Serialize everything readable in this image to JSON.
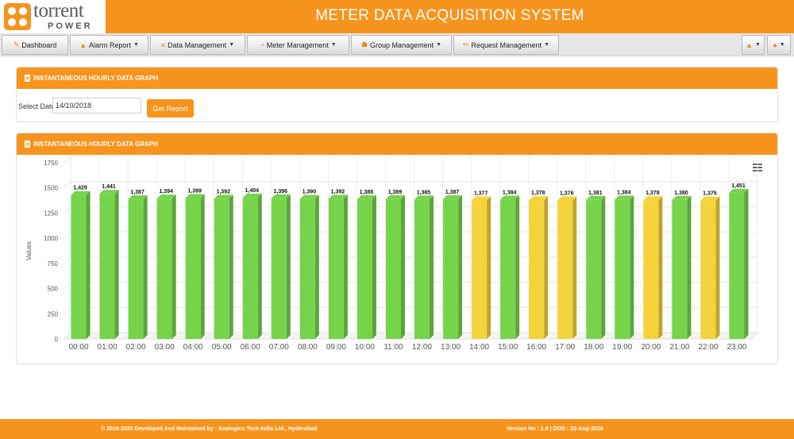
{
  "header": {
    "logo_word": "torrent",
    "logo_sub": "POWER",
    "title": "METER DATA ACQUISITION SYSTEM"
  },
  "nav": {
    "items": [
      {
        "label": "Dashboard",
        "icon": "edit-icon",
        "caret": false
      },
      {
        "label": "Alarm Report",
        "icon": "bell-icon",
        "caret": true
      },
      {
        "label": "Data Management",
        "icon": "database-icon",
        "caret": true
      },
      {
        "label": "Meter Management",
        "icon": "dashboard-gauge-icon",
        "caret": true
      },
      {
        "label": "Group Management",
        "icon": "users-icon",
        "caret": true
      },
      {
        "label": "Request Management",
        "icon": "pencil-icon",
        "caret": true
      }
    ],
    "right_icons": [
      "bell-icon",
      "user-icon"
    ]
  },
  "filter_panel": {
    "title": "INSTANTANEOUS HOURLY DATA GRAPH",
    "date_label": "Select Date",
    "date_value": "14/10/2018",
    "button_label": "Get Report"
  },
  "chart_panel": {
    "title": "INSTANTANEOUS HOURLY DATA GRAPH"
  },
  "chart_data": {
    "type": "bar",
    "ylabel": "Values",
    "xlabel": "",
    "ylim": [
      0,
      1750
    ],
    "yticks": [
      0,
      250,
      500,
      750,
      1000,
      1250,
      1500,
      1750
    ],
    "grid": true,
    "categories": [
      "00:00",
      "01:00",
      "02:00",
      "03:00",
      "04:00",
      "05:00",
      "06:00",
      "07:00",
      "08:00",
      "09:00",
      "10:00",
      "11:00",
      "12:00",
      "13:00",
      "14:00",
      "15:00",
      "16:00",
      "17:00",
      "18:00",
      "19:00",
      "20:00",
      "21:00",
      "22:00",
      "23:00"
    ],
    "values": [
      1429,
      1441,
      1387,
      1394,
      1399,
      1392,
      1404,
      1396,
      1390,
      1392,
      1388,
      1389,
      1385,
      1387,
      1377,
      1384,
      1378,
      1376,
      1381,
      1384,
      1378,
      1380,
      1375,
      1451
    ],
    "value_labels": [
      "1,429",
      "1,441",
      "1,387",
      "1,394",
      "1,399",
      "1,392",
      "1,404",
      "1,396",
      "1,390",
      "1,392",
      "1,388",
      "1,389",
      "1,385",
      "1,387",
      "1,377",
      "1,384",
      "1,378",
      "1,376",
      "1,381",
      "1,384",
      "1,378",
      "1,380",
      "1,375",
      "1,451"
    ],
    "bar_colors": [
      "green",
      "green",
      "green",
      "green",
      "green",
      "green",
      "green",
      "green",
      "green",
      "green",
      "green",
      "green",
      "green",
      "green",
      "yellow",
      "green",
      "yellow",
      "yellow",
      "green",
      "green",
      "yellow",
      "green",
      "yellow",
      "green"
    ],
    "colors": {
      "green": "#76d44b",
      "yellow": "#f5d43b"
    }
  },
  "footer": {
    "left_prefix": "© 2015-2020 Developed And Maintained by : ",
    "left_link": "Analogics Tech India Ltd., Hyderabad",
    "right": "Version No : 1.9  |  DOD : 22-Aug-2018"
  }
}
